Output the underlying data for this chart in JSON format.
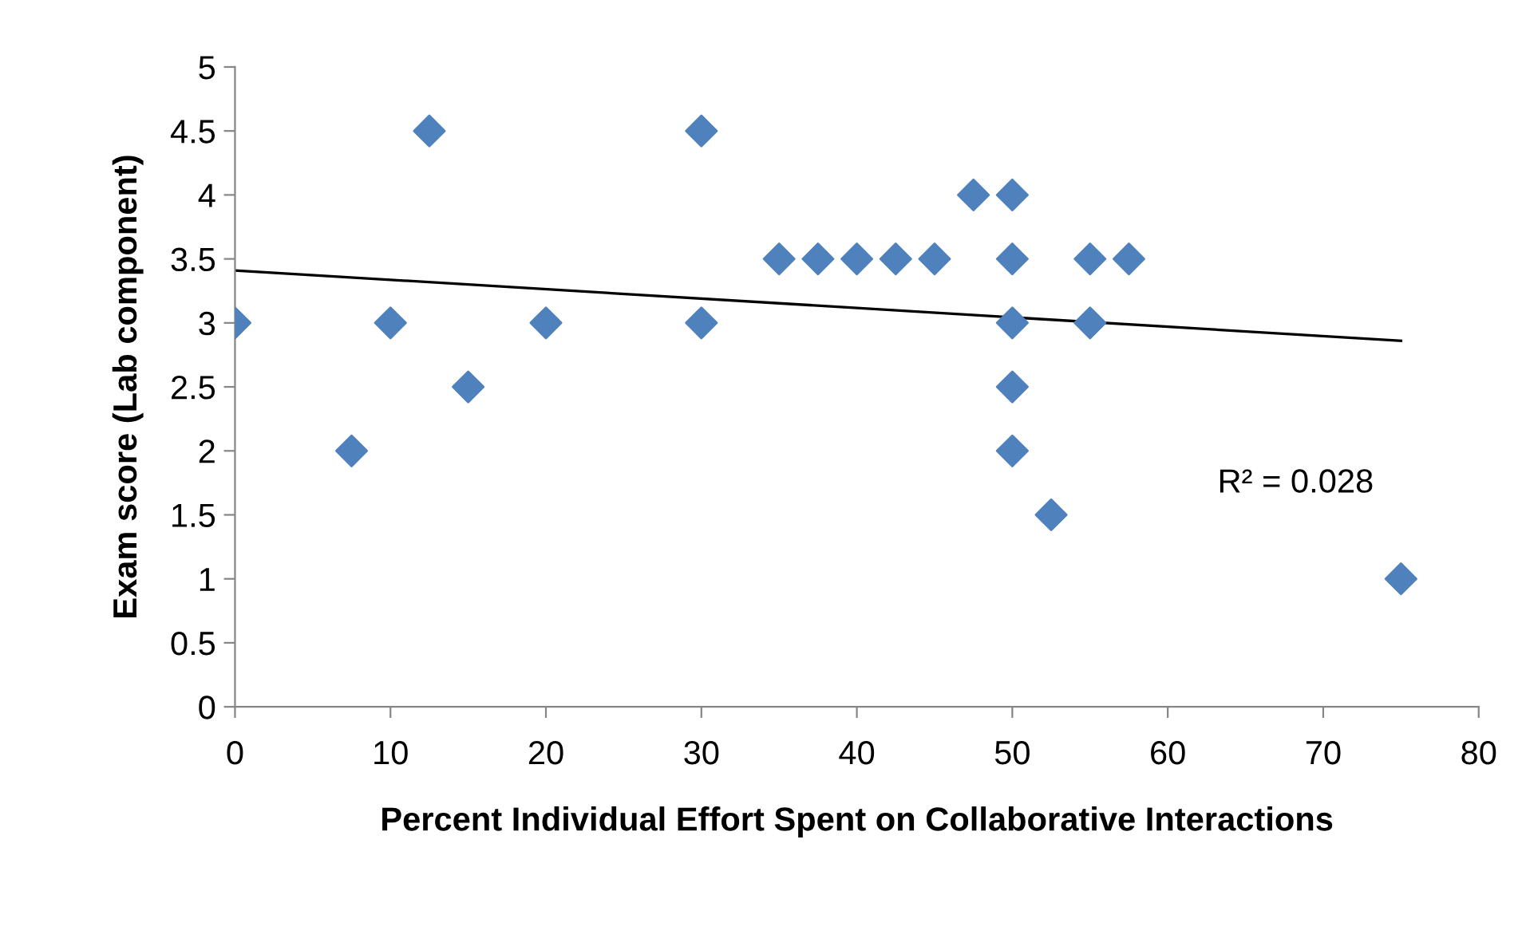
{
  "chart_data": {
    "type": "scatter",
    "xlabel": "Percent Individual Effort Spent on Collaborative Interactions",
    "ylabel": "Exam score (Lab component)",
    "series": [
      {
        "color": "#4f81bd",
        "marker": "diamond",
        "x": [
          0,
          7.5,
          10,
          12.5,
          15,
          20,
          30,
          30,
          35,
          37.5,
          40,
          42.5,
          45,
          47.5,
          50,
          50,
          50,
          50,
          50,
          52.5,
          55,
          55,
          57.5,
          75
        ],
        "values": [
          3,
          2,
          3,
          4.5,
          2.5,
          3,
          4.5,
          3,
          3.5,
          3.5,
          3.5,
          3.5,
          3.5,
          4,
          4,
          3.5,
          3,
          2.5,
          2,
          1.5,
          3.5,
          3,
          3.5,
          1
        ]
      },
      {
        "type": "line",
        "color": "#000000",
        "marker": "none",
        "line_style": "solid",
        "x": [
          0,
          75
        ],
        "values": [
          3.41,
          2.86
        ]
      }
    ],
    "annotations": [
      "R² = 0.028"
    ],
    "xlim": [
      0,
      80
    ],
    "xticks": [
      0,
      10,
      20,
      30,
      40,
      50,
      60,
      70,
      80
    ],
    "ylim": [
      0,
      5
    ],
    "yticks": [
      0,
      0.5,
      1,
      1.5,
      2,
      2.5,
      3,
      3.5,
      4,
      4.5,
      5
    ],
    "grid": false,
    "legend": false
  }
}
